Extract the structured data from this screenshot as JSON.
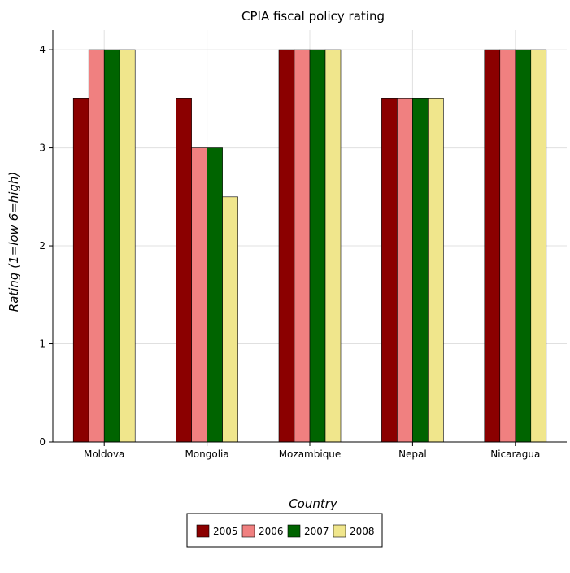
{
  "chart_data": {
    "type": "bar",
    "title": "CPIA fiscal policy rating",
    "xlabel": "Country",
    "ylabel": "Rating (1=low 6=high)",
    "categories": [
      "Moldova",
      "Mongolia",
      "Mozambique",
      "Nepal",
      "Nicaragua"
    ],
    "series": [
      {
        "name": "2005",
        "color": "#8b0000",
        "values": [
          3.5,
          3.5,
          4.0,
          3.5,
          4.0
        ]
      },
      {
        "name": "2006",
        "color": "#f08080",
        "values": [
          4.0,
          3.0,
          4.0,
          3.5,
          4.0
        ]
      },
      {
        "name": "2007",
        "color": "#006400",
        "values": [
          4.0,
          3.0,
          4.0,
          3.5,
          4.0
        ]
      },
      {
        "name": "2008",
        "color": "#f0e68c",
        "values": [
          4.0,
          2.5,
          4.0,
          3.5,
          4.0
        ]
      }
    ],
    "yticks": [
      "0",
      "1",
      "2",
      "3",
      "4"
    ],
    "ylim": [
      0,
      4.2
    ],
    "grid": true,
    "legend_position": "bottom"
  }
}
